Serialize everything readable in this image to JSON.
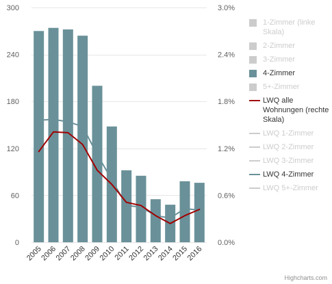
{
  "credits": "Highcharts.com",
  "legend": [
    {
      "label": "1-Zimmer (linke Skala)",
      "kind": "bar",
      "active": false
    },
    {
      "label": "2-Zimmer",
      "kind": "bar",
      "active": false
    },
    {
      "label": "3-Zimmer",
      "kind": "bar",
      "active": false
    },
    {
      "label": "4-Zimmer",
      "kind": "bar",
      "active": true,
      "color": "#6a9199"
    },
    {
      "label": "5+-Zimmer",
      "kind": "bar",
      "active": false
    },
    {
      "label": "LWQ alle Wohnungen (rechte Skala)",
      "kind": "line",
      "active": true,
      "color": "#a00000"
    },
    {
      "label": "LWQ 1-Zimmer",
      "kind": "line",
      "active": false
    },
    {
      "label": "LWQ 2-Zimmer",
      "kind": "line",
      "active": false
    },
    {
      "label": "LWQ 3-Zimmer",
      "kind": "line",
      "active": false
    },
    {
      "label": "LWQ 4-Zimmer",
      "kind": "line",
      "active": true,
      "color": "#6a9199"
    },
    {
      "label": "LWQ 5+-Zimmer",
      "kind": "line",
      "active": false
    }
  ],
  "chart_data": {
    "type": "bar",
    "categories": [
      "2005",
      "2006",
      "2007",
      "2008",
      "2009",
      "2010",
      "2011",
      "2012",
      "2013",
      "2014",
      "2015",
      "2016"
    ],
    "yleft": {
      "min": 0,
      "max": 300,
      "ticks": [
        "0",
        "60",
        "120",
        "180",
        "240",
        "300"
      ]
    },
    "yright": {
      "min": 0,
      "max": 3.0,
      "ticks": [
        "0.0%",
        "0.6%",
        "1.2%",
        "1.8%",
        "2.4%",
        "3.0%"
      ]
    },
    "grid": true,
    "legend_position": "right",
    "series": [
      {
        "name": "4-Zimmer",
        "type": "bar",
        "axis": "left",
        "color": "#6a9199",
        "values": [
          270,
          274,
          272,
          264,
          200,
          148,
          92,
          85,
          55,
          48,
          78,
          76
        ]
      },
      {
        "name": "LWQ alle Wohnungen (rechte Skala)",
        "type": "line",
        "axis": "right",
        "color": "#a00000",
        "values": [
          1.16,
          1.41,
          1.4,
          1.25,
          0.92,
          0.74,
          0.51,
          0.47,
          0.34,
          0.24,
          0.34,
          0.42
        ]
      },
      {
        "name": "LWQ 4-Zimmer",
        "type": "line",
        "axis": "right",
        "color": "#6a9199",
        "values": [
          1.56,
          1.57,
          1.54,
          1.48,
          1.12,
          0.8,
          0.47,
          0.45,
          0.34,
          0.31,
          0.43,
          0.41
        ]
      }
    ]
  }
}
